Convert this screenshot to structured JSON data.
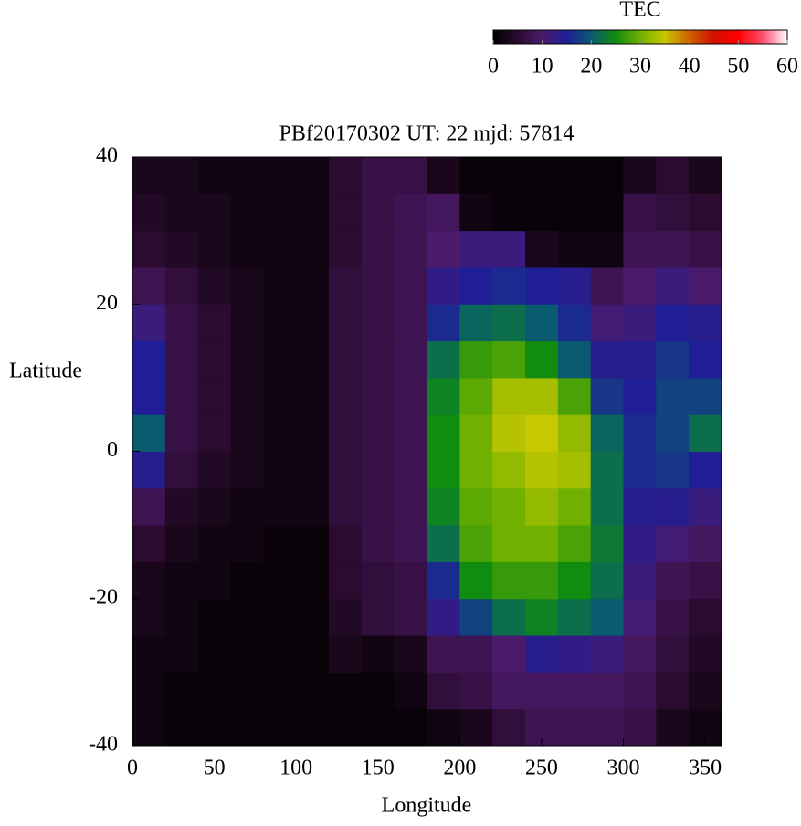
{
  "chart_data": {
    "type": "heatmap",
    "title": "PBf20170302  UT: 22  mjd: 57814",
    "x_label": "Longitude",
    "y_label": "Latitude",
    "colorbar_label": "TEC",
    "xlim": [
      0,
      360
    ],
    "ylim": [
      -40,
      40
    ],
    "xticks": [
      0,
      50,
      100,
      150,
      200,
      250,
      300,
      350
    ],
    "yticks": [
      -40,
      -20,
      0,
      20,
      40
    ],
    "clim": [
      0,
      60
    ],
    "cticks": [
      0,
      10,
      20,
      30,
      40,
      50,
      60
    ],
    "colormap": [
      "#000000",
      "#2b0b2f",
      "#4b1a6b",
      "#1f1e96",
      "#0a5a70",
      "#108c10",
      "#70b000",
      "#c8c800",
      "#d06000",
      "#d01000",
      "#ff0000",
      "#ff5070",
      "#ffffff"
    ],
    "x": [
      10,
      30,
      50,
      70,
      90,
      110,
      130,
      150,
      170,
      190,
      210,
      230,
      250,
      270,
      290,
      310,
      330,
      350
    ],
    "y": [
      -37.5,
      -32.5,
      -27.5,
      -22.5,
      -17.5,
      -12.5,
      -7.5,
      -2.5,
      2.5,
      7.5,
      12.5,
      17.5,
      22.5,
      27.5,
      32.5,
      37.5
    ],
    "z": [
      [
        2,
        1,
        1,
        1,
        1,
        1,
        1,
        1,
        1,
        2,
        3,
        6,
        8,
        8,
        8,
        7,
        3,
        2
      ],
      [
        2,
        1,
        1,
        1,
        1,
        1,
        1,
        1,
        2,
        6,
        7,
        9,
        9,
        9,
        9,
        8,
        5,
        3
      ],
      [
        2,
        2,
        1,
        1,
        1,
        1,
        3,
        2,
        3,
        8,
        8,
        10,
        14,
        13,
        12,
        9,
        6,
        4
      ],
      [
        3,
        2,
        1,
        1,
        1,
        1,
        4,
        6,
        7,
        13,
        18,
        22,
        24,
        22,
        20,
        11,
        7,
        5
      ],
      [
        3,
        2,
        2,
        1,
        1,
        1,
        5,
        6,
        7,
        16,
        25,
        27,
        27,
        25,
        22,
        12,
        8,
        7
      ],
      [
        5,
        3,
        2,
        2,
        1,
        1,
        5,
        7,
        8,
        22,
        28,
        30,
        30,
        28,
        23,
        13,
        11,
        9
      ],
      [
        8,
        4,
        3,
        2,
        2,
        2,
        6,
        7,
        8,
        24,
        29,
        30,
        32,
        30,
        22,
        14,
        14,
        12
      ],
      [
        14,
        6,
        4,
        3,
        2,
        2,
        6,
        7,
        8,
        25,
        30,
        32,
        34,
        33,
        22,
        16,
        17,
        15
      ],
      [
        20,
        7,
        5,
        3,
        2,
        2,
        6,
        7,
        8,
        25,
        30,
        34,
        35,
        32,
        21,
        16,
        18,
        22
      ],
      [
        15,
        7,
        5,
        3,
        2,
        2,
        6,
        7,
        8,
        24,
        29,
        33,
        33,
        28,
        17,
        15,
        18,
        18
      ],
      [
        15,
        7,
        5,
        3,
        2,
        2,
        6,
        7,
        8,
        22,
        27,
        28,
        25,
        20,
        14,
        14,
        17,
        15
      ],
      [
        12,
        7,
        5,
        3,
        2,
        2,
        6,
        7,
        8,
        16,
        21,
        22,
        20,
        16,
        11,
        12,
        15,
        14
      ],
      [
        8,
        6,
        4,
        3,
        2,
        2,
        6,
        7,
        8,
        13,
        15,
        16,
        15,
        14,
        8,
        10,
        12,
        10
      ],
      [
        5,
        4,
        3,
        2,
        2,
        2,
        5,
        7,
        8,
        10,
        12,
        12,
        3,
        2,
        2,
        8,
        8,
        7
      ],
      [
        4,
        3,
        3,
        2,
        2,
        2,
        5,
        7,
        8,
        9,
        2,
        1,
        1,
        1,
        1,
        7,
        6,
        5
      ],
      [
        3,
        3,
        2,
        2,
        2,
        2,
        5,
        7,
        7,
        3,
        1,
        1,
        1,
        1,
        1,
        3,
        5,
        3
      ]
    ]
  }
}
